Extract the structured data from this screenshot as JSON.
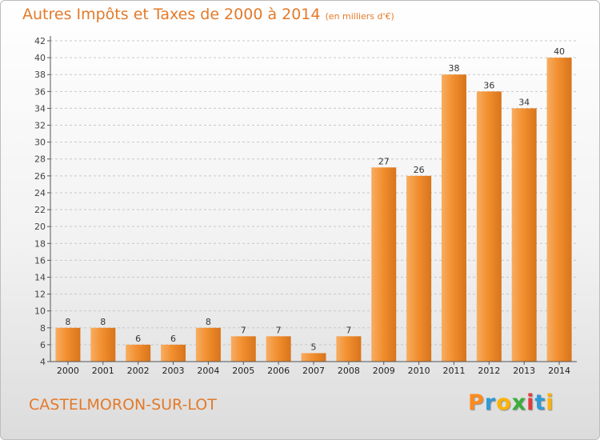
{
  "chart_data": {
    "type": "bar",
    "title": "Autres Impôts et Taxes de 2000 à 2014",
    "subtitle": "(en milliers d'€)",
    "categories": [
      "2000",
      "2001",
      "2002",
      "2003",
      "2004",
      "2005",
      "2006",
      "2007",
      "2008",
      "2009",
      "2010",
      "2011",
      "2012",
      "2013",
      "2014"
    ],
    "values": [
      8,
      8,
      6,
      6,
      8,
      7,
      7,
      5,
      7,
      27,
      26,
      38,
      36,
      34,
      40
    ],
    "ylim": [
      4,
      42
    ],
    "yticks": [
      4,
      6,
      8,
      10,
      12,
      14,
      16,
      18,
      20,
      22,
      24,
      26,
      28,
      30,
      32,
      34,
      36,
      38,
      40,
      42
    ],
    "grid": true,
    "bar_color": "#f28f2f",
    "bar_color_light": "#f7ad62",
    "bar_color_dark": "#d8741b"
  },
  "footer": {
    "city": "CASTELMORON-SUR-LOT",
    "logo_letters": [
      "P",
      "r",
      "o",
      "x",
      "i",
      "t",
      "i"
    ],
    "logo_colors": [
      "#ff8a1c",
      "#2f9ad6",
      "#ffb300",
      "#3cae3a",
      "#e23a3a",
      "#2f9ad6",
      "#ffb300"
    ]
  },
  "colors": {
    "title": "#e37a2a",
    "grid": "#c8c8c8"
  }
}
